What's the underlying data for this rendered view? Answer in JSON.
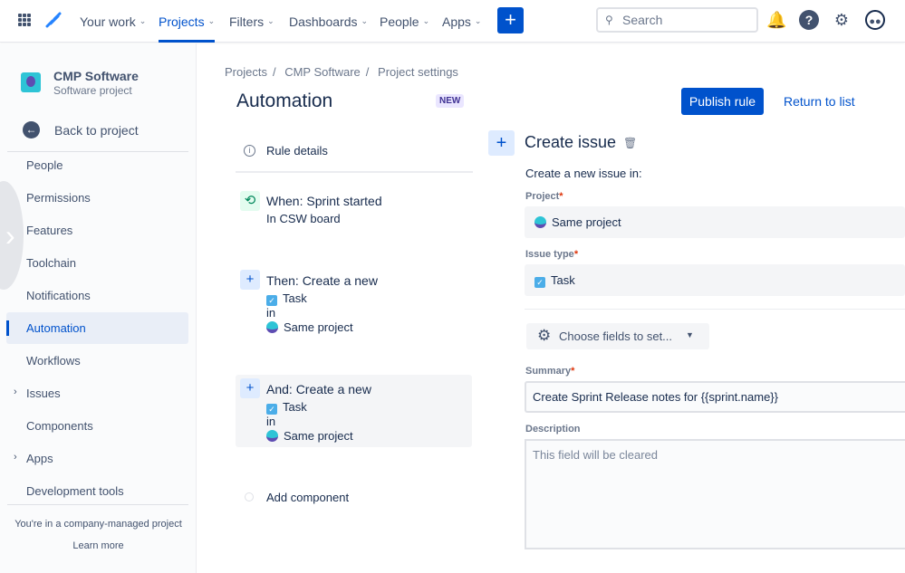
{
  "topnav": {
    "items": [
      {
        "label": "Your work"
      },
      {
        "label": "Projects",
        "active": true
      },
      {
        "label": "Filters"
      },
      {
        "label": "Dashboards"
      },
      {
        "label": "People"
      },
      {
        "label": "Apps"
      }
    ],
    "create_label": "+",
    "search_placeholder": "Search",
    "accent": "#0052cc"
  },
  "sidebar": {
    "project_name": "CMP Software",
    "project_type": "Software project",
    "back_label": "Back to project",
    "items": [
      {
        "label": "People"
      },
      {
        "label": "Permissions"
      },
      {
        "label": "Features"
      },
      {
        "label": "Toolchain"
      },
      {
        "label": "Notifications"
      },
      {
        "label": "Automation",
        "active": true
      },
      {
        "label": "Workflows"
      },
      {
        "label": "Issues",
        "expandable": true
      },
      {
        "label": "Components"
      },
      {
        "label": "Apps",
        "expandable": true
      },
      {
        "label": "Development tools"
      }
    ],
    "footer_text": "You're in a company-managed project",
    "learn_more": "Learn more"
  },
  "breadcrumb": [
    "Projects",
    "CMP Software",
    "Project settings"
  ],
  "header": {
    "title": "Automation",
    "badge": "NEW",
    "publish": "Publish rule",
    "return": "Return to list"
  },
  "rule": {
    "details": "Rule details",
    "trigger": {
      "title": "When: Sprint started",
      "sub": "In CSW board"
    },
    "actions": [
      {
        "title": "Then: Create a new",
        "type": "Task",
        "in": "in",
        "project": "Same project"
      },
      {
        "title": "And: Create a new",
        "type": "Task",
        "in": "in",
        "project": "Same project",
        "selected": true
      }
    ],
    "add_component": "Add component"
  },
  "panel": {
    "title": "Create issue",
    "subtitle": "Create a new issue in:",
    "project_label": "Project",
    "project_value": "Same project",
    "issuetype_label": "Issue type",
    "issuetype_value": "Task",
    "choose_fields": "Choose fields to set...",
    "summary_label": "Summary",
    "summary_value": "Create Sprint Release notes for {{sprint.name}}",
    "description_label": "Description",
    "description_placeholder": "This field will be cleared",
    "required_mark": "*"
  }
}
